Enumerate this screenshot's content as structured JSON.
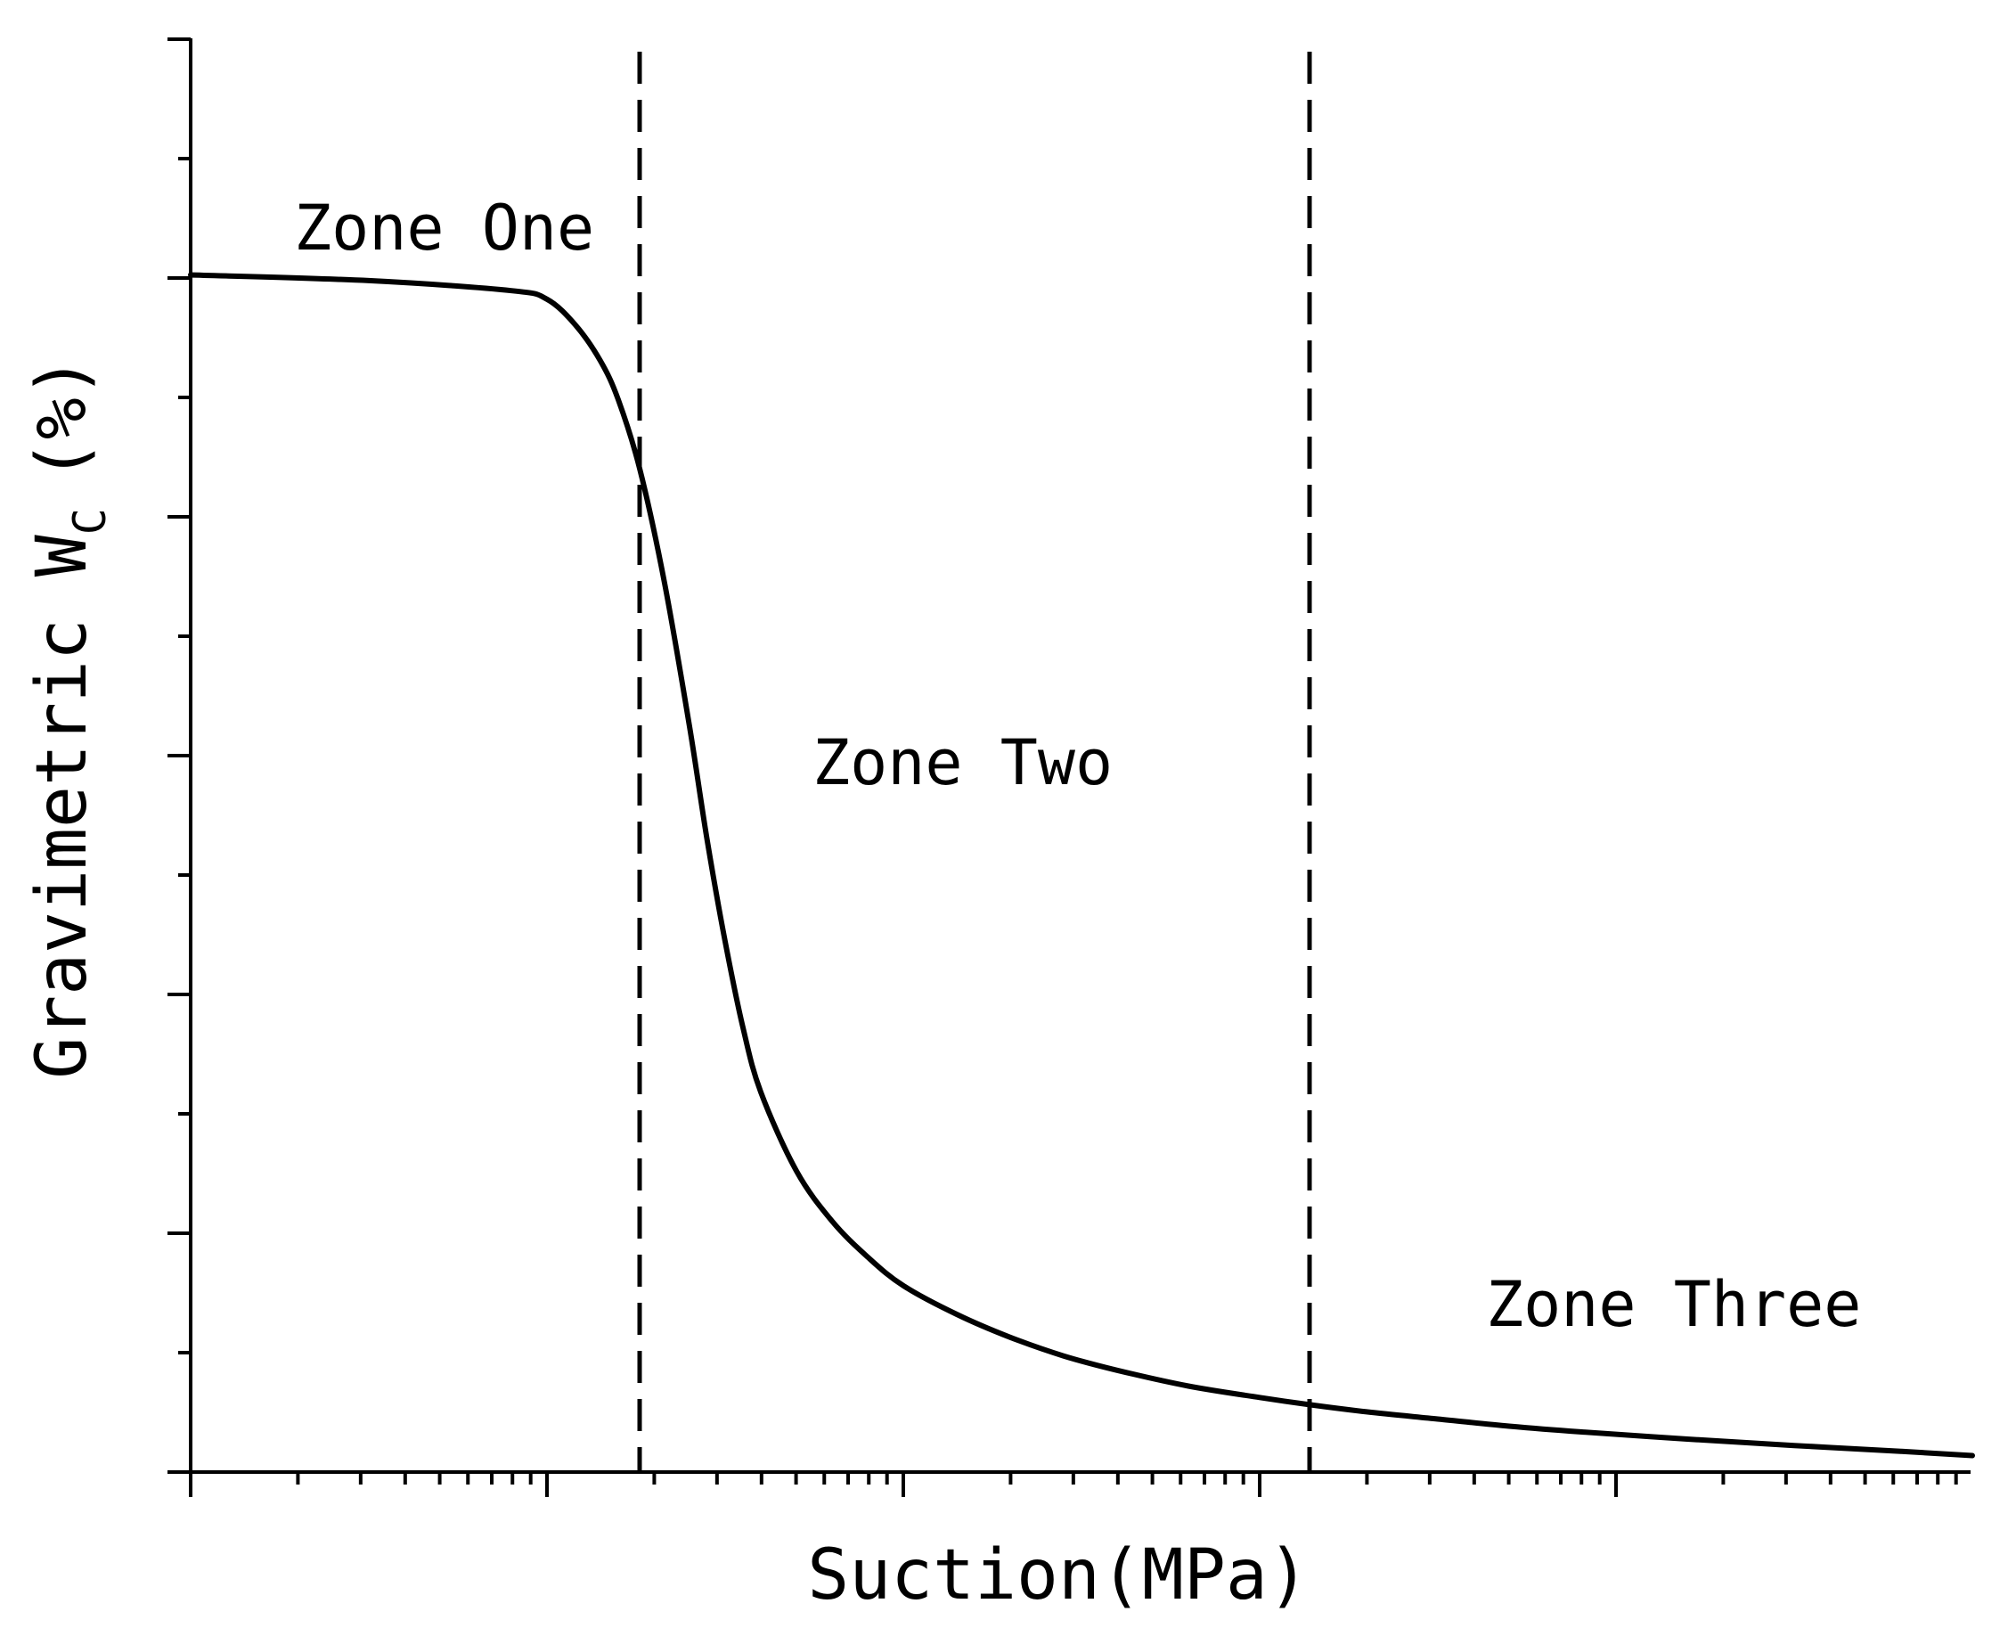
{
  "chart_data": {
    "type": "line",
    "title": "",
    "xlabel": "Suction(MPa)",
    "ylabel": {
      "main": "Gravimetric  W",
      "subscript": "C",
      "unit": "(%)"
    },
    "x_scale": "log",
    "x_decades": 5,
    "y_axis": {
      "labeled_ticks": false,
      "major_tick_count": 6,
      "minor_per_major": 1
    },
    "zone_boundaries": [
      {
        "name": "zone-one-two",
        "x_decade": 1.26
      },
      {
        "name": "zone-two-three",
        "x_decade": 3.14
      }
    ],
    "zone_labels": [
      {
        "text": "Zone One"
      },
      {
        "text": "Zone Two"
      },
      {
        "text": "Zone Three"
      }
    ],
    "series": [
      {
        "x_decade": [
          0,
          0.5,
          0.9,
          1.0,
          1.08,
          1.15,
          1.2,
          1.26,
          1.33,
          1.4,
          1.45,
          1.5,
          1.55,
          1.6,
          1.7,
          1.8,
          1.9,
          2.0,
          2.15,
          2.3,
          2.45,
          2.6,
          2.8,
          3.0,
          3.14,
          3.3,
          3.5,
          3.7,
          3.9,
          4.2,
          4.5,
          4.8,
          5.0
        ],
        "y_fraction": [
          0.835,
          0.831,
          0.824,
          0.818,
          0.8,
          0.775,
          0.748,
          0.7,
          0.62,
          0.52,
          0.44,
          0.37,
          0.31,
          0.265,
          0.21,
          0.175,
          0.15,
          0.13,
          0.11,
          0.094,
          0.081,
          0.071,
          0.06,
          0.052,
          0.047,
          0.042,
          0.037,
          0.032,
          0.028,
          0.023,
          0.0185,
          0.0145,
          0.0115
        ]
      }
    ],
    "grid": false,
    "legend": false
  }
}
